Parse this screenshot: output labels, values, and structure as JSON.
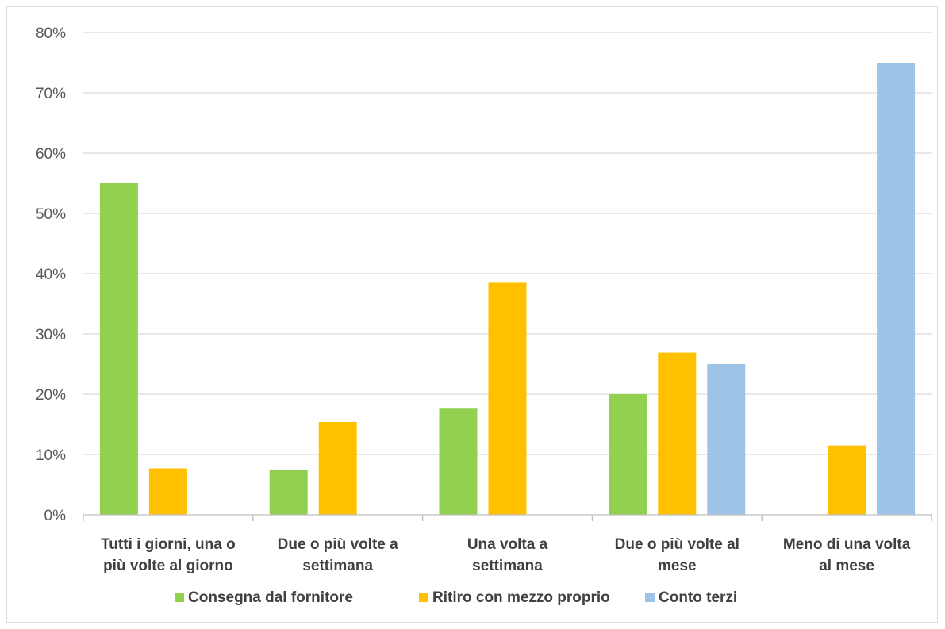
{
  "chart_data": {
    "type": "bar",
    "categories": [
      [
        "Tutti i giorni, una o",
        "più volte al giorno"
      ],
      [
        "Due o più volte a",
        "settimana"
      ],
      [
        "Una volta a",
        "settimana"
      ],
      [
        "Due o più volte al",
        "mese"
      ],
      [
        "Meno di una volta",
        "al mese"
      ]
    ],
    "series": [
      {
        "name": "Consegna dal fornitore",
        "color": "#92d050",
        "values": [
          0.55,
          0.075,
          0.176,
          0.2,
          null
        ]
      },
      {
        "name": "Ritiro con mezzo proprio",
        "color": "#ffc000",
        "values": [
          0.077,
          0.154,
          0.385,
          0.269,
          0.115
        ]
      },
      {
        "name": "Conto terzi",
        "color": "#9dc3e6",
        "values": [
          null,
          null,
          null,
          0.25,
          0.75
        ]
      }
    ],
    "ylim": [
      0,
      0.8
    ],
    "yticks": [
      "0%",
      "10%",
      "20%",
      "30%",
      "40%",
      "50%",
      "60%",
      "70%",
      "80%"
    ],
    "grid": true,
    "legend_position": "bottom",
    "title": "",
    "xlabel": "",
    "ylabel": ""
  }
}
